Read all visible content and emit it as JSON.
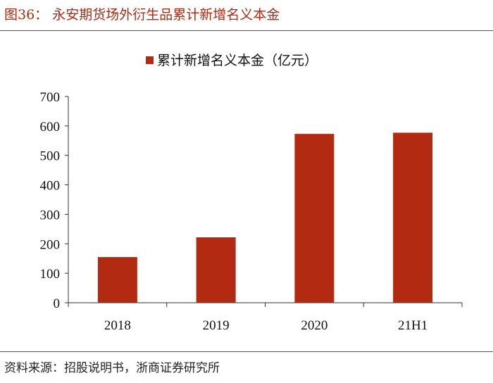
{
  "figure": {
    "title": "图36：  永安期货场外衍生品累计新增名义本金",
    "source": "资料来源：招股说明书，浙商证券研究所"
  },
  "colors": {
    "accent": "#b22a12",
    "bar": "#b22a12",
    "axis": "#333333"
  },
  "chart_data": {
    "type": "bar",
    "categories": [
      "2018",
      "2019",
      "2020",
      "21H1"
    ],
    "series": [
      {
        "name": "累计新增名义本金（亿元）",
        "values": [
          155,
          222,
          573,
          577
        ]
      }
    ],
    "ylim": [
      0,
      700
    ],
    "yticks": [
      0,
      100,
      200,
      300,
      400,
      500,
      600,
      700
    ],
    "legend_position": "top-center",
    "grid": false
  }
}
